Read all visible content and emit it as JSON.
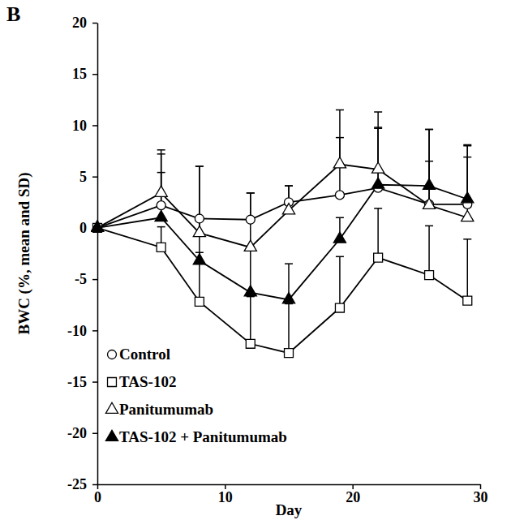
{
  "chart_data": {
    "type": "line",
    "title": "B",
    "x_label": "Day",
    "y_label": "BWC (%, mean and SD)",
    "x": [
      0,
      5,
      8,
      12,
      15,
      19,
      22,
      26,
      29
    ],
    "series": [
      {
        "name": "Control",
        "color": "#000000",
        "marker": "open-circle",
        "values": [
          0,
          2.2,
          0.9,
          0.8,
          2.5,
          3.2,
          3.9,
          2.3,
          2.3
        ],
        "errors": [
          0,
          5.0,
          5.1,
          2.6,
          1.6,
          5.6,
          5.8,
          4.2,
          4.6
        ]
      },
      {
        "name": "TAS-102",
        "color": "#000000",
        "marker": "open-square",
        "values": [
          0,
          -1.9,
          -7.2,
          -11.3,
          -12.2,
          -7.8,
          -2.9,
          -4.6,
          -7.1
        ],
        "errors": [
          0,
          2.0,
          4.8,
          4.6,
          4.8,
          5.0,
          4.8,
          4.8,
          6.0
        ]
      },
      {
        "name": "Panitumumab",
        "color": "#000000",
        "marker": "open-triangle",
        "values": [
          0,
          3.4,
          -0.5,
          -1.9,
          1.7,
          6.2,
          5.7,
          2.2,
          1.0
        ],
        "errors": [
          0,
          4.2,
          6.5,
          5.3,
          2.4,
          5.3,
          5.6,
          7.4,
          7.0
        ]
      },
      {
        "name": "TAS-102 + Panitumumab",
        "color": "#000000",
        "marker": "filled-triangle",
        "values": [
          0,
          1.0,
          -3.2,
          -6.3,
          -7.0,
          -1.1,
          4.2,
          4.1,
          2.8
        ],
        "errors": [
          0,
          4.4,
          4.0,
          4.5,
          3.5,
          2.1,
          5.6,
          5.5,
          5.3
        ]
      }
    ],
    "xlim": [
      0,
      30
    ],
    "xticks": [
      0,
      10,
      20,
      30
    ],
    "ylim": [
      -25,
      20
    ],
    "yticks": [
      -25,
      -20,
      -15,
      -10,
      -5,
      0,
      5,
      10,
      15,
      20
    ],
    "grid": false,
    "legend": "lower-left"
  }
}
